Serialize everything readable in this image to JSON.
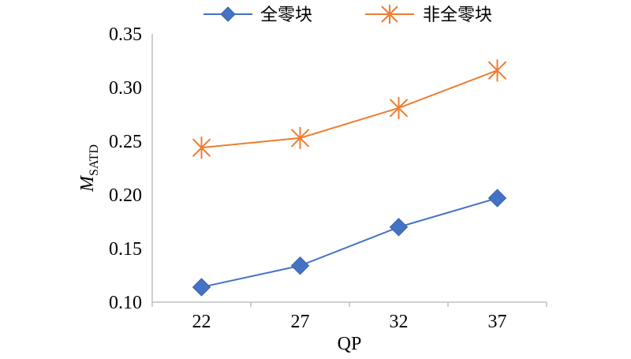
{
  "chart_data": {
    "type": "line",
    "title": "",
    "xlabel": "QP",
    "ylabel": {
      "main": "M",
      "sub": "SATD"
    },
    "categories": [
      "22",
      "27",
      "32",
      "37"
    ],
    "ylim": [
      0.1,
      0.35
    ],
    "yticks": [
      "0.10",
      "0.15",
      "0.20",
      "0.25",
      "0.30",
      "0.35"
    ],
    "grid": false,
    "legend_position": "top-center",
    "series": [
      {
        "name": "全零块",
        "values": [
          0.114,
          0.134,
          0.17,
          0.197
        ],
        "color": "#4472C4",
        "marker": "diamond"
      },
      {
        "name": "非全零块",
        "values": [
          0.244,
          0.253,
          0.281,
          0.316
        ],
        "color": "#ED7D31",
        "marker": "asterisk"
      }
    ]
  }
}
